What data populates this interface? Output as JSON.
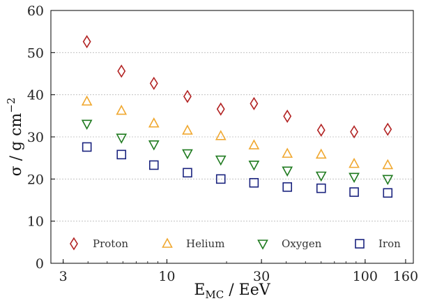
{
  "chart_data": {
    "type": "scatter",
    "title": "",
    "xlabel": {
      "main": "E",
      "sub": "MC",
      "rest": " / EeV"
    },
    "ylabel": {
      "main": "σ / g cm",
      "sup": "−2"
    },
    "xscale": "log",
    "xlim": [
      2.6,
      175
    ],
    "ylim": [
      0,
      60
    ],
    "x_ticks": [
      3,
      10,
      30,
      100,
      160
    ],
    "x_tick_labels": [
      "3",
      "10",
      "30",
      "100",
      "160"
    ],
    "y_ticks": [
      0,
      10,
      20,
      30,
      40,
      50,
      60
    ],
    "y_tick_labels": [
      "0",
      "10",
      "20",
      "30",
      "40",
      "50",
      "60"
    ],
    "grid": "horizontal dotted",
    "legend_position": "bottom, inside",
    "x": [
      3.95,
      5.9,
      8.6,
      12.7,
      18.7,
      27.5,
      40.5,
      60,
      88,
      130
    ],
    "series": [
      {
        "name": "Proton",
        "marker": "diamond",
        "color": "#b22222",
        "values": [
          52.6,
          45.6,
          42.7,
          39.6,
          36.6,
          37.9,
          34.9,
          31.6,
          31.2,
          31.8
        ]
      },
      {
        "name": "Helium",
        "marker": "triangle-up",
        "color": "#f0a830",
        "values": [
          38.4,
          36.2,
          33.2,
          31.5,
          30.2,
          28.0,
          26.0,
          25.8,
          23.6,
          23.3
        ]
      },
      {
        "name": "Oxygen",
        "marker": "triangle-down",
        "color": "#1f7a1f",
        "values": [
          33.1,
          29.8,
          28.2,
          26.1,
          24.6,
          23.4,
          22.0,
          20.8,
          20.5,
          20.0
        ]
      },
      {
        "name": "Iron",
        "marker": "square",
        "color": "#1a237e",
        "values": [
          27.6,
          25.8,
          23.3,
          21.5,
          20.0,
          19.1,
          18.1,
          17.8,
          16.9,
          16.7
        ]
      }
    ]
  }
}
